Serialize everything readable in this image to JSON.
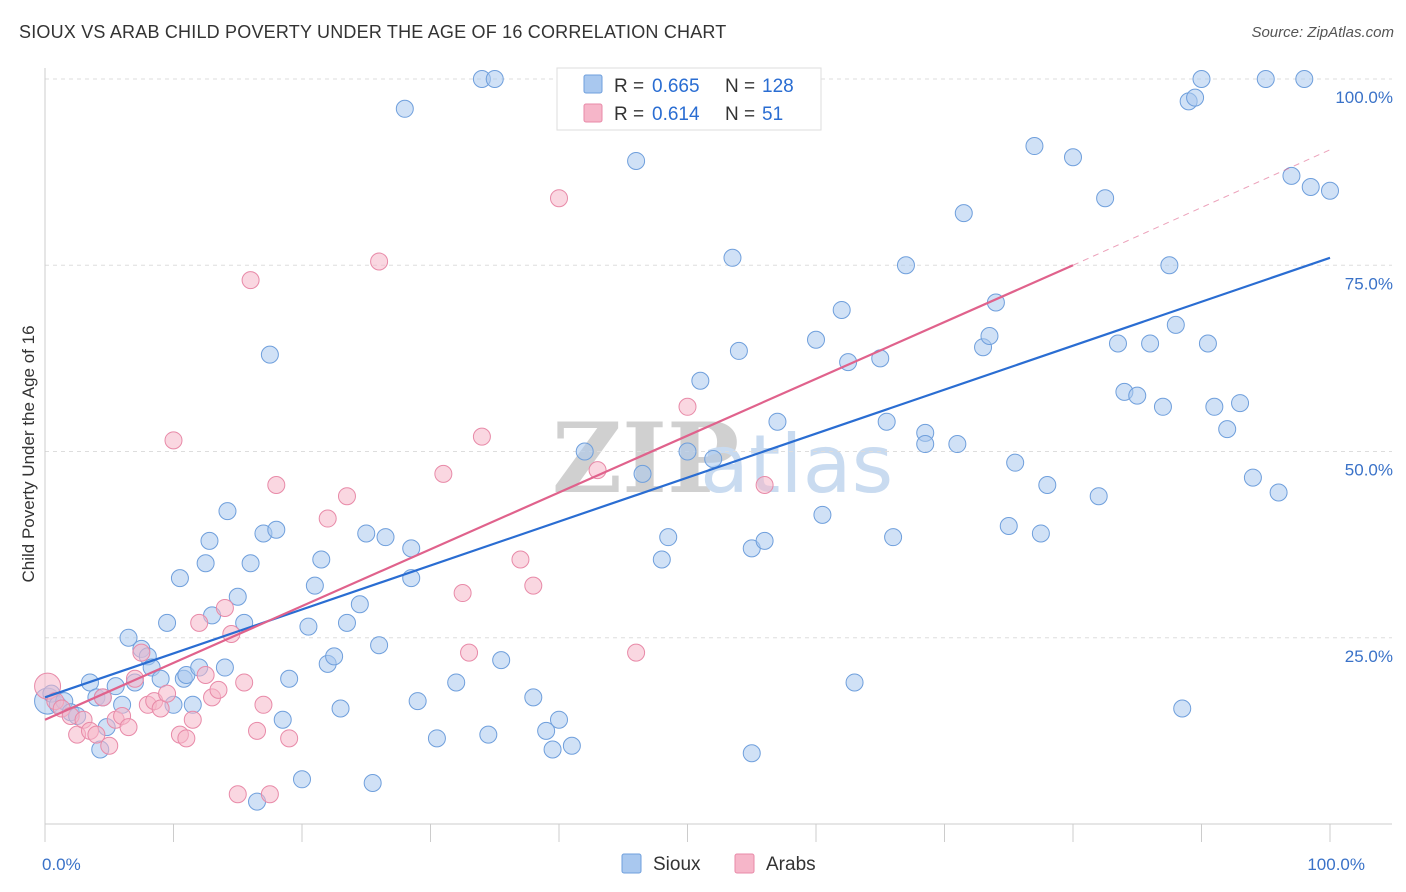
{
  "title": "SIOUX VS ARAB CHILD POVERTY UNDER THE AGE OF 16 CORRELATION CHART",
  "source": "Source: ZipAtlas.com",
  "watermark": {
    "zip": "ZIP",
    "atlas": "atlas"
  },
  "legend_top": {
    "rows": [
      {
        "r_label": "R = ",
        "r_value": "0.665",
        "n_label": "N = ",
        "n_value": "128",
        "color": "#a9c8ef"
      },
      {
        "r_label": "R = ",
        "r_value": "0.614",
        "n_label": "N = ",
        "n_value": " 51",
        "color": "#f6b6c9"
      }
    ]
  },
  "legend_bottom": [
    {
      "label": "Sioux",
      "color": "#a9c8ef"
    },
    {
      "label": "Arabs",
      "color": "#f6b6c9"
    }
  ],
  "colors": {
    "sioux_fill": "#a9c8ef",
    "sioux_stroke": "#6f9fdc",
    "sioux_line": "#2a6dd2",
    "arabs_fill": "#f6b6c9",
    "arabs_stroke": "#e88aa8",
    "arabs_line": "#e0628c",
    "grid": "#dddddd",
    "tick_label": "#3a72c8"
  },
  "chart_data": {
    "type": "scatter",
    "xlabel": "",
    "ylabel": "Child Poverty Under the Age of 16",
    "xlim": [
      0,
      100
    ],
    "ylim": [
      0,
      100
    ],
    "x_tick_labels": [
      {
        "value": 0,
        "label": "0.0%"
      },
      {
        "value": 100,
        "label": "100.0%"
      }
    ],
    "y_tick_labels": [
      {
        "value": 25,
        "label": "25.0%"
      },
      {
        "value": 50,
        "label": "50.0%"
      },
      {
        "value": 75,
        "label": "75.0%"
      },
      {
        "value": 100,
        "label": "100.0%"
      }
    ],
    "grid": true,
    "series": [
      {
        "name": "Sioux",
        "trend": {
          "x": [
            0,
            100
          ],
          "y": [
            17,
            76
          ]
        },
        "points": [
          [
            0.2,
            16.5
          ],
          [
            0.5,
            17.5
          ],
          [
            1,
            16
          ],
          [
            1.5,
            16.5
          ],
          [
            2,
            15
          ],
          [
            2.5,
            14.5
          ],
          [
            3.5,
            19
          ],
          [
            4,
            17
          ],
          [
            4.3,
            10
          ],
          [
            4.5,
            17
          ],
          [
            4.8,
            13
          ],
          [
            5.5,
            18.5
          ],
          [
            6,
            16
          ],
          [
            6.5,
            25
          ],
          [
            7,
            19
          ],
          [
            7.5,
            23.5
          ],
          [
            8,
            22.5
          ],
          [
            8.3,
            21
          ],
          [
            9,
            19.5
          ],
          [
            9.5,
            27
          ],
          [
            10,
            16
          ],
          [
            10.5,
            33
          ],
          [
            10.8,
            19.5
          ],
          [
            11,
            20
          ],
          [
            11.5,
            16
          ],
          [
            12,
            21
          ],
          [
            12.5,
            35
          ],
          [
            12.8,
            38
          ],
          [
            13,
            28
          ],
          [
            14,
            21
          ],
          [
            14.2,
            42
          ],
          [
            15,
            30.5
          ],
          [
            15.5,
            27
          ],
          [
            16,
            35
          ],
          [
            16.5,
            3
          ],
          [
            17,
            39
          ],
          [
            17.5,
            63
          ],
          [
            18,
            39.5
          ],
          [
            18.5,
            14
          ],
          [
            19,
            19.5
          ],
          [
            20,
            6
          ],
          [
            20.5,
            26.5
          ],
          [
            21,
            32
          ],
          [
            21.5,
            35.5
          ],
          [
            22,
            21.5
          ],
          [
            22.5,
            22.5
          ],
          [
            23,
            15.5
          ],
          [
            23.5,
            27
          ],
          [
            24.5,
            29.5
          ],
          [
            25,
            39
          ],
          [
            25.5,
            5.5
          ],
          [
            26,
            24
          ],
          [
            26.5,
            38.5
          ],
          [
            28,
            96
          ],
          [
            28.5,
            37
          ],
          [
            28.5,
            33
          ],
          [
            29,
            16.5
          ],
          [
            30.5,
            11.5
          ],
          [
            32,
            19
          ],
          [
            34,
            100
          ],
          [
            34.5,
            12
          ],
          [
            35,
            100
          ],
          [
            35.5,
            22
          ],
          [
            38,
            17
          ],
          [
            39,
            12.5
          ],
          [
            39.5,
            10
          ],
          [
            40,
            14
          ],
          [
            41,
            10.5
          ],
          [
            42,
            50
          ],
          [
            46,
            89
          ],
          [
            46.5,
            47
          ],
          [
            48,
            35.5
          ],
          [
            48.5,
            38.5
          ],
          [
            50,
            50
          ],
          [
            51,
            59.5
          ],
          [
            52,
            49
          ],
          [
            53.5,
            76
          ],
          [
            54,
            63.5
          ],
          [
            55,
            9.5
          ],
          [
            55,
            37
          ],
          [
            56,
            38
          ],
          [
            57,
            54
          ],
          [
            60,
            65
          ],
          [
            60.5,
            41.5
          ],
          [
            62,
            69
          ],
          [
            62.5,
            62
          ],
          [
            63,
            19
          ],
          [
            65,
            62.5
          ],
          [
            65.5,
            54
          ],
          [
            66,
            38.5
          ],
          [
            67,
            75
          ],
          [
            68.5,
            52.5
          ],
          [
            68.5,
            51
          ],
          [
            71,
            51
          ],
          [
            71.5,
            82
          ],
          [
            73,
            64
          ],
          [
            73.5,
            65.5
          ],
          [
            74,
            70
          ],
          [
            75,
            40
          ],
          [
            75.5,
            48.5
          ],
          [
            77,
            91
          ],
          [
            77.5,
            39
          ],
          [
            78,
            45.5
          ],
          [
            80,
            89.5
          ],
          [
            82,
            44
          ],
          [
            82.5,
            84
          ],
          [
            83.5,
            64.5
          ],
          [
            84,
            58
          ],
          [
            85,
            57.5
          ],
          [
            86,
            64.5
          ],
          [
            87,
            56
          ],
          [
            87.5,
            75
          ],
          [
            88,
            67
          ],
          [
            88.5,
            15.5
          ],
          [
            89,
            97
          ],
          [
            89.5,
            97.5
          ],
          [
            90,
            100
          ],
          [
            90.5,
            64.5
          ],
          [
            91,
            56
          ],
          [
            92,
            53
          ],
          [
            93,
            56.5
          ],
          [
            94,
            46.5
          ],
          [
            95,
            100
          ],
          [
            96,
            44.5
          ],
          [
            97,
            87
          ],
          [
            98,
            100
          ],
          [
            98.5,
            85.5
          ],
          [
            100,
            85
          ]
        ]
      },
      {
        "name": "Arabs",
        "trend": {
          "x": [
            0,
            80
          ],
          "y": [
            14,
            75
          ],
          "dash_to": [
            100,
            90.5
          ]
        },
        "points": [
          [
            0.2,
            18.5
          ],
          [
            0.8,
            16.5
          ],
          [
            1.3,
            15.5
          ],
          [
            2,
            14.5
          ],
          [
            2.5,
            12
          ],
          [
            3,
            14
          ],
          [
            3.5,
            12.5
          ],
          [
            4,
            12
          ],
          [
            4.5,
            17
          ],
          [
            5,
            10.5
          ],
          [
            5.5,
            14
          ],
          [
            6,
            14.5
          ],
          [
            6.5,
            13
          ],
          [
            7,
            19.5
          ],
          [
            7.5,
            23
          ],
          [
            8,
            16
          ],
          [
            8.5,
            16.5
          ],
          [
            9,
            15.5
          ],
          [
            9.5,
            17.5
          ],
          [
            10,
            51.5
          ],
          [
            10.5,
            12
          ],
          [
            11,
            11.5
          ],
          [
            11.5,
            14
          ],
          [
            12,
            27
          ],
          [
            12.5,
            20
          ],
          [
            13,
            17
          ],
          [
            13.5,
            18
          ],
          [
            14,
            29
          ],
          [
            14.5,
            25.5
          ],
          [
            15,
            4
          ],
          [
            15.5,
            19
          ],
          [
            16,
            73
          ],
          [
            16.5,
            12.5
          ],
          [
            17,
            16
          ],
          [
            17.5,
            4
          ],
          [
            18,
            45.5
          ],
          [
            19,
            11.5
          ],
          [
            22,
            41
          ],
          [
            23.5,
            44
          ],
          [
            26,
            75.5
          ],
          [
            31,
            47
          ],
          [
            32.5,
            31
          ],
          [
            33,
            23
          ],
          [
            34,
            52
          ],
          [
            37,
            35.5
          ],
          [
            38,
            32
          ],
          [
            40,
            84
          ],
          [
            43,
            47.5
          ],
          [
            46,
            23
          ],
          [
            50,
            56
          ],
          [
            56,
            45.5
          ]
        ]
      }
    ]
  }
}
